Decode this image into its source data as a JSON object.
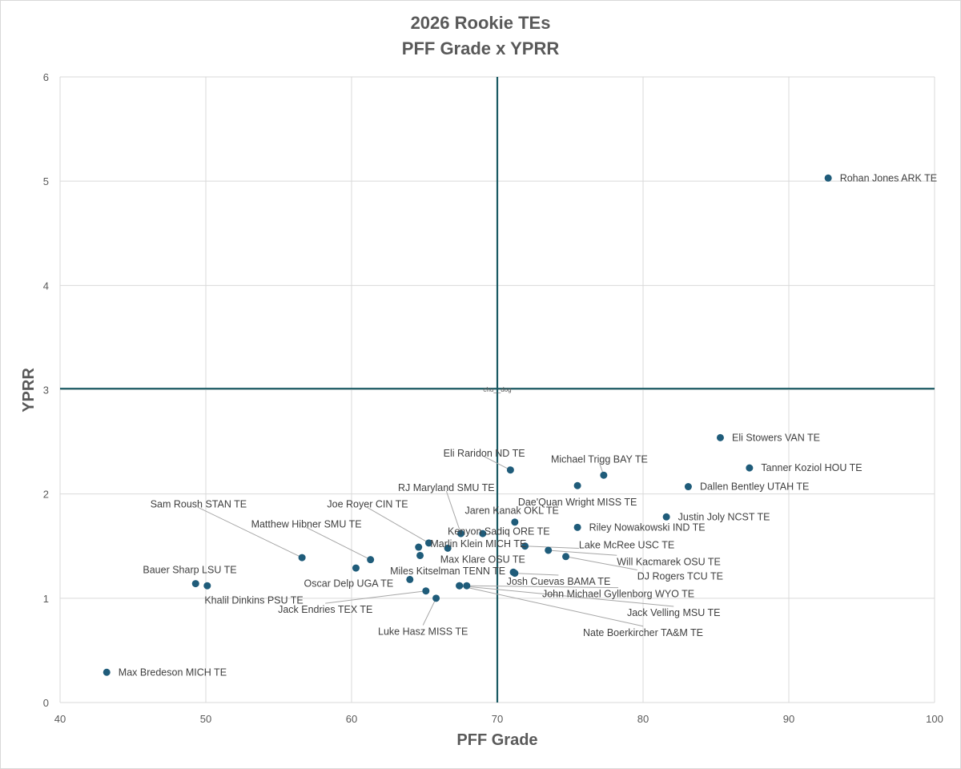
{
  "chart_data": {
    "type": "scatter",
    "title": "2026 Rookie TEs",
    "subtitle": "PFF Grade x YPRR",
    "xlabel": "PFF Grade",
    "ylabel": "YPRR",
    "xlim": [
      40,
      100
    ],
    "ylim": [
      0,
      6
    ],
    "x_ticks": [
      "40",
      "50",
      "60",
      "70",
      "80",
      "90",
      "100"
    ],
    "y_ticks": [
      "0",
      "1",
      "2",
      "3",
      "4",
      "5",
      "6"
    ],
    "grid": true,
    "point_color": "#1f5c7a",
    "reference_line_color": "#1a5a63",
    "reference_lines": {
      "x": 70,
      "y": 3.01
    },
    "watermark": "chu__dog",
    "points": [
      {
        "label": "Rohan Jones ARK TE",
        "x": 92.7,
        "y": 5.03,
        "lx": 93.5,
        "ly": 5.03,
        "a": "start",
        "leader": false
      },
      {
        "label": "Eli Stowers VAN TE",
        "x": 85.3,
        "y": 2.54,
        "lx": 86.1,
        "ly": 2.54,
        "a": "start",
        "leader": false
      },
      {
        "label": "Tanner Koziol HOU TE",
        "x": 87.3,
        "y": 2.25,
        "lx": 88.1,
        "ly": 2.25,
        "a": "start",
        "leader": false
      },
      {
        "label": "Dallen Bentley UTAH TE",
        "x": 83.1,
        "y": 2.07,
        "lx": 83.9,
        "ly": 2.07,
        "a": "start",
        "leader": false
      },
      {
        "label": "Justin Joly NCST TE",
        "x": 81.6,
        "y": 1.78,
        "lx": 82.4,
        "ly": 1.78,
        "a": "start",
        "leader": false
      },
      {
        "label": "Riley Nowakowski IND TE",
        "x": 75.5,
        "y": 1.68,
        "lx": 76.3,
        "ly": 1.68,
        "a": "start",
        "leader": false
      },
      {
        "label": "Michael Trigg BAY TE",
        "x": 77.3,
        "y": 2.18,
        "lx": 77.0,
        "ly": 2.33,
        "a": "middle",
        "leader": true
      },
      {
        "label": "Dae'Quan Wright MISS TE",
        "x": 75.5,
        "y": 2.08,
        "lx": 75.5,
        "ly": 1.92,
        "a": "middle",
        "leader": false
      },
      {
        "label": "Eli Raridon ND TE",
        "x": 70.9,
        "y": 2.23,
        "lx": 69.1,
        "ly": 2.39,
        "a": "middle",
        "leader": true
      },
      {
        "label": "RJ Maryland SMU TE",
        "x": 67.5,
        "y": 1.62,
        "lx": 66.5,
        "ly": 2.06,
        "a": "middle",
        "leader": true
      },
      {
        "label": "Jaren Kanak OKL TE",
        "x": 71.2,
        "y": 1.73,
        "lx": 71.0,
        "ly": 1.84,
        "a": "middle",
        "leader": false
      },
      {
        "label": "Kenyon Sadiq ORE TE",
        "x": 69.0,
        "y": 1.62,
        "lx": 70.1,
        "ly": 1.64,
        "a": "middle",
        "leader": false
      },
      {
        "label": "Lake McRee USC TE",
        "x": 71.9,
        "y": 1.5,
        "lx": 75.6,
        "ly": 1.51,
        "a": "start",
        "leader": true
      },
      {
        "label": "Marlin Klein MICH TE",
        "x": 66.6,
        "y": 1.48,
        "lx": 68.7,
        "ly": 1.52,
        "a": "middle",
        "leader": false
      },
      {
        "label": "Will Kacmarek OSU TE",
        "x": 73.5,
        "y": 1.46,
        "lx": 78.2,
        "ly": 1.35,
        "a": "start",
        "leader": true
      },
      {
        "label": "DJ Rogers TCU TE",
        "x": 74.7,
        "y": 1.4,
        "lx": 79.6,
        "ly": 1.21,
        "a": "start",
        "leader": true
      },
      {
        "label": "Max Klare OSU TE",
        "x": 71.1,
        "y": 1.25,
        "lx": 69.0,
        "ly": 1.37,
        "a": "middle",
        "leader": false
      },
      {
        "label": "Josh Cuevas BAMA TE",
        "x": 71.2,
        "y": 1.24,
        "lx": 74.2,
        "ly": 1.16,
        "a": "middle",
        "leader": true
      },
      {
        "label": "Miles Kitselman TENN TE",
        "x": 64.0,
        "y": 1.18,
        "lx": 66.6,
        "ly": 1.26,
        "a": "middle",
        "leader": false
      },
      {
        "label": "John Michael Gyllenborg WYO TE",
        "x": 67.9,
        "y": 1.12,
        "lx": 78.3,
        "ly": 1.04,
        "a": "middle",
        "leader": true
      },
      {
        "label": "Jack Velling MSU TE",
        "x": 67.4,
        "y": 1.12,
        "lx": 82.1,
        "ly": 0.86,
        "a": "middle",
        "leader": true
      },
      {
        "label": "Nate Boerkircher TA&M TE",
        "x": 67.4,
        "y": 1.12,
        "lx": 80.0,
        "ly": 0.67,
        "a": "middle",
        "leader": true
      },
      {
        "label": "Oscar Delp UGA TE",
        "x": 60.3,
        "y": 1.29,
        "lx": 59.8,
        "ly": 1.14,
        "a": "middle",
        "leader": false
      },
      {
        "label": "Jack Endries TEX TE",
        "x": 65.1,
        "y": 1.07,
        "lx": 58.2,
        "ly": 0.89,
        "a": "middle",
        "leader": true
      },
      {
        "label": "Luke Hasz MISS TE",
        "x": 65.8,
        "y": 1.0,
        "lx": 64.9,
        "ly": 0.68,
        "a": "middle",
        "leader": true
      },
      {
        "label": "Joe Royer CIN TE",
        "x": 65.3,
        "y": 1.53,
        "lx": 61.1,
        "ly": 1.9,
        "a": "middle",
        "leader": true
      },
      {
        "label": "Unlabeled point 1",
        "x": 64.6,
        "y": 1.49,
        "lx": 0,
        "ly": 0,
        "a": "none",
        "leader": false
      },
      {
        "label": "Unlabeled point 2",
        "x": 64.7,
        "y": 1.41,
        "lx": 0,
        "ly": 0,
        "a": "none",
        "leader": false
      },
      {
        "label": "Matthew Hibner SMU TE",
        "x": 61.3,
        "y": 1.37,
        "lx": 56.9,
        "ly": 1.71,
        "a": "middle",
        "leader": true
      },
      {
        "label": "Sam Roush STAN TE",
        "x": 56.6,
        "y": 1.39,
        "lx": 49.5,
        "ly": 1.9,
        "a": "middle",
        "leader": true
      },
      {
        "label": "Bauer Sharp LSU TE",
        "x": 49.3,
        "y": 1.14,
        "lx": 48.9,
        "ly": 1.27,
        "a": "middle",
        "leader": false
      },
      {
        "label": "Khalil Dinkins PSU TE",
        "x": 50.1,
        "y": 1.12,
        "lx": 53.3,
        "ly": 0.98,
        "a": "middle",
        "leader": false
      },
      {
        "label": "Max Bredeson MICH TE",
        "x": 43.2,
        "y": 0.29,
        "lx": 44.0,
        "ly": 0.29,
        "a": "start",
        "leader": false
      }
    ]
  }
}
